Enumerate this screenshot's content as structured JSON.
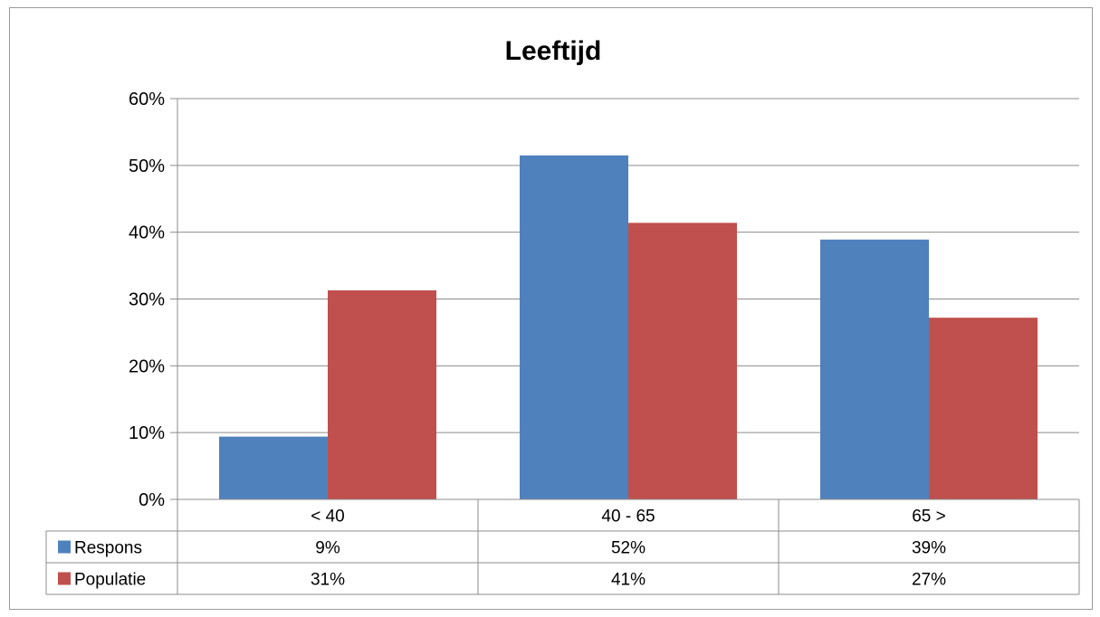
{
  "page": {
    "heading": ""
  },
  "chart_data": {
    "type": "bar",
    "title": "Leeftijd",
    "categories": [
      "< 40",
      "40 - 65",
      "65 >"
    ],
    "series": [
      {
        "name": "Respons",
        "values": [
          9.4,
          51.5,
          38.9
        ],
        "labels": [
          "9%",
          "52%",
          "39%"
        ],
        "color": "#4f81bd"
      },
      {
        "name": "Populatie",
        "values": [
          31.3,
          41.4,
          27.2
        ],
        "labels": [
          "31%",
          "41%",
          "27%"
        ],
        "color": "#c0504d"
      }
    ],
    "ylim": [
      0,
      60
    ],
    "yticks": [
      0,
      10,
      20,
      30,
      40,
      50,
      60
    ],
    "ytick_labels": [
      "0%",
      "10%",
      "20%",
      "30%",
      "40%",
      "50%",
      "60%"
    ],
    "grid": true,
    "legend": "data-table"
  }
}
